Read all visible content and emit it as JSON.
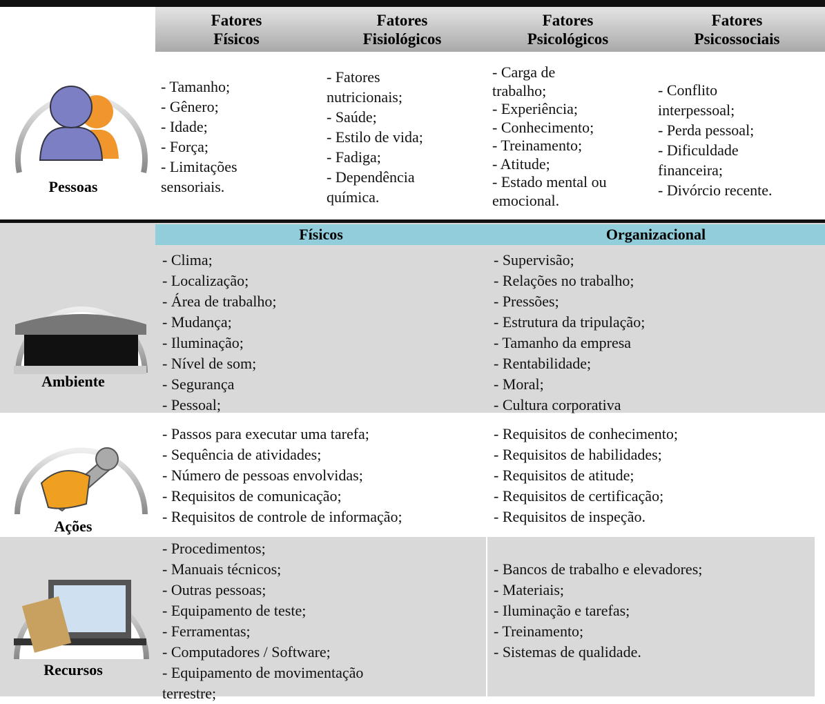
{
  "header": {
    "columns": [
      [
        "Fatores",
        "Físicos"
      ],
      [
        "Fatores",
        "Fisiológicos"
      ],
      [
        "Fatores",
        "Psicológicos"
      ],
      [
        "Fatores",
        "Psicossociais"
      ]
    ]
  },
  "rows": [
    {
      "label": "Pessoas",
      "cells": [
        [
          "- Tamanho;",
          "- Gênero;",
          "- Idade;",
          "- Força;",
          "- Limitações",
          "sensoriais."
        ],
        [
          "- Fatores",
          "nutricionais;",
          "- Saúde;",
          "- Estilo de vida;",
          "- Fadiga;",
          "- Dependência",
          "química."
        ],
        [
          "- Carga de",
          "trabalho;",
          "- Experiência;",
          "- Conhecimento;",
          "- Treinamento;",
          "- Atitude;",
          "- Estado mental ou",
          "emocional."
        ],
        [
          "- Conflito",
          "interpessoal;",
          "- Perda pessoal;",
          "- Dificuldade",
          "financeira;",
          "- Divórcio recente."
        ]
      ]
    },
    {
      "label": "Ambiente",
      "subheaders": [
        "Físicos",
        "Organizacional"
      ],
      "cells": [
        [
          "- Clima;",
          "- Localização;",
          "- Área de trabalho;",
          "- Mudança;",
          "- Iluminação;",
          "- Nível de som;",
          "- Segurança",
          "- Pessoal;"
        ],
        [
          "- Supervisão;",
          "- Relações no trabalho;",
          "- Pressões;",
          "- Estrutura da tripulação;",
          "- Tamanho da empresa",
          "- Rentabilidade;",
          "- Moral;",
          "- Cultura corporativa"
        ]
      ]
    },
    {
      "label": "Ações",
      "cells": [
        [
          "- Passos para executar uma tarefa;",
          "- Sequência de atividades;",
          "- Número de pessoas envolvidas;",
          "- Requisitos de comunicação;",
          "- Requisitos de controle de informação;"
        ],
        [
          "- Requisitos de conhecimento;",
          "- Requisitos de habilidades;",
          "- Requisitos de atitude;",
          "- Requisitos de certificação;",
          "- Requisitos de inspeção."
        ]
      ]
    },
    {
      "label": "Recursos",
      "cells": [
        [
          "- Procedimentos;",
          "- Manuais técnicos;",
          "- Outras pessoas;",
          "- Equipamento de teste;",
          "- Ferramentas;",
          "- Computadores / Software;",
          "- Equipamento de movimentação",
          "terrestre;"
        ],
        [
          "- Bancos de trabalho e elevadores;",
          "- Materiais;",
          "- Iluminação e tarefas;",
          "- Treinamento;",
          "- Sistemas de qualidade."
        ]
      ]
    }
  ]
}
